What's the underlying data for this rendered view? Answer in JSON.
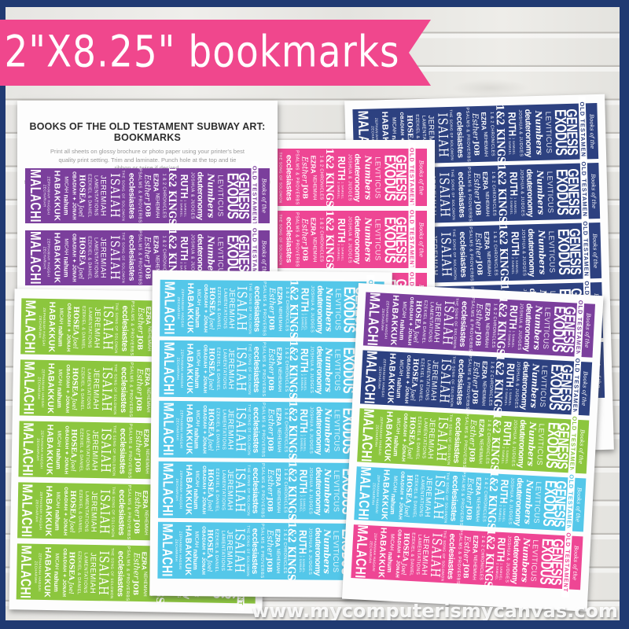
{
  "banner": {
    "label": "2\"X8.25\" bookmarks"
  },
  "watermark": {
    "text": "www.mycomputerismycanvas.com"
  },
  "instructions": {
    "title": "BOOKS OF THE OLD TESTAMENT SUBWAY ART: BOOKMARKS",
    "body": "Print all sheets on glossy brochure or photo paper using your printer's best quality print setting. Trim and laminate. Punch hole at the top and tie ribbon or twine if desired.",
    "footer": "MAY REPRINT AS NEEDED FOR PERSONAL OR CHURCH USE  |  www.mycomputerismycanvas.com  |  © 2010-Present All Rights Reserved"
  },
  "colors": {
    "purple": "#7b3f9c",
    "pink": "#ee4694",
    "navy": "#2d4180",
    "green": "#8cc63e",
    "cyan": "#54c7e9"
  },
  "ui": {
    "banner_color": "#f0478d",
    "frame_color": "#203a72"
  },
  "sheets": {
    "instructions": {
      "strips": [
        "purple",
        "purple",
        "purple",
        "purple",
        "purple"
      ]
    },
    "pink": {
      "strips": [
        "pink",
        "pink",
        "pink",
        "pink",
        "pink"
      ]
    },
    "navy": {
      "strips": [
        "navy",
        "navy",
        "navy",
        "navy",
        "navy"
      ]
    },
    "green": {
      "strips": [
        "green",
        "green",
        "green",
        "green",
        "green"
      ]
    },
    "cyan": {
      "strips": [
        "cyan",
        "cyan",
        "cyan",
        "cyan",
        "cyan"
      ]
    },
    "rainbow": {
      "strips": [
        "purple",
        "navy",
        "green",
        "cyan",
        "pink"
      ]
    }
  },
  "bookmark": {
    "lines": [
      {
        "c": "scr",
        "t": "Books of the"
      },
      {
        "c": "badge",
        "t": "OLD TESTAMENT"
      },
      {
        "c": "g1",
        "t": "GENESIS"
      },
      {
        "c": "g2",
        "t": "EXODUS"
      },
      {
        "c": "lev",
        "t": "LEVITICUS"
      },
      {
        "c": "num",
        "t": "Numbers"
      },
      {
        "c": "deu",
        "t": "deuteronomy"
      },
      {
        "c": "sm",
        "t": "JOSHUA & JUDGES"
      },
      {
        "c": "ruth",
        "t": "RUTH",
        "sub": [
          "1 SAMUEL",
          "2 SAMUEL"
        ]
      },
      {
        "c": "kings",
        "t": "1&2 KINGS"
      },
      {
        "c": "chr",
        "t": "1 & 2 CHRONICLES"
      },
      {
        "c": "ezra",
        "t": "EZRA",
        "t2": "NEHEMIAH"
      },
      {
        "c": "esth",
        "t": "Esther",
        "t2": "JOB"
      },
      {
        "c": "ps",
        "t": "PSALMS & PROVERBS"
      },
      {
        "c": "ecc",
        "t": "ecclesiastes"
      },
      {
        "c": "song",
        "t": "THE SONG OF SOLOMON"
      },
      {
        "c": "isa",
        "t": "ISAIAH"
      },
      {
        "c": "jer",
        "t": "JEREMIAH"
      },
      {
        "c": "lam",
        "t": "LAMENTATIONS"
      },
      {
        "c": "ezk",
        "t": "EZEKIEL & DANIEL"
      },
      {
        "c": "hos",
        "t": "HOSEA",
        "t2": "Joel"
      },
      {
        "c": "oba",
        "t": "OBADIAH ✦ JONAH"
      },
      {
        "c": "mic",
        "t": "MICAH",
        "t2": "nahum"
      },
      {
        "c": "hab",
        "t": "HABAKKUK"
      },
      {
        "c": "zep",
        "sub": [
          "ZEPHANIAH HAGGAI",
          "ZECHARIAH"
        ]
      },
      {
        "c": "mal",
        "t": "MALACHI"
      }
    ]
  }
}
